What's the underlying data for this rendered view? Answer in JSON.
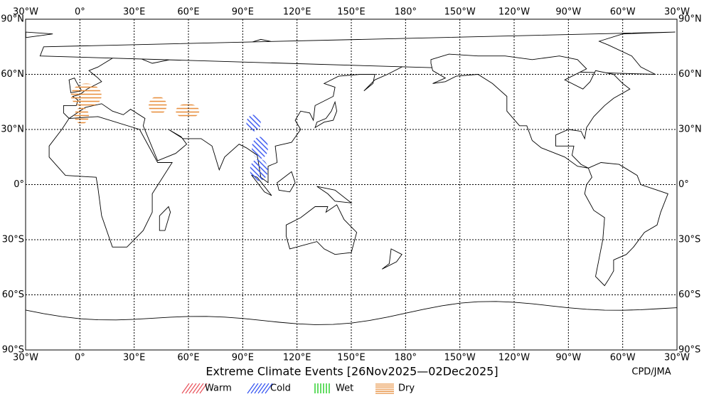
{
  "map": {
    "title": "Extreme Climate Events [26Nov2025—02Dec2025]",
    "credit": "CPD/JMA",
    "lon_labels": [
      "30°W",
      "0°",
      "30°E",
      "60°E",
      "90°E",
      "120°E",
      "150°E",
      "180°",
      "150°W",
      "120°W",
      "90°W",
      "60°W",
      "30°W"
    ],
    "lat_labels": [
      "90°N",
      "60°N",
      "30°N",
      "0°",
      "30°S",
      "60°S",
      "90°S"
    ],
    "legend": [
      {
        "name": "Warm",
        "color": "#e8505a"
      },
      {
        "name": "Cold",
        "color": "#3050f0"
      },
      {
        "name": "Wet",
        "color": "#22cc22"
      },
      {
        "name": "Dry",
        "color": "#e89040"
      }
    ]
  }
}
